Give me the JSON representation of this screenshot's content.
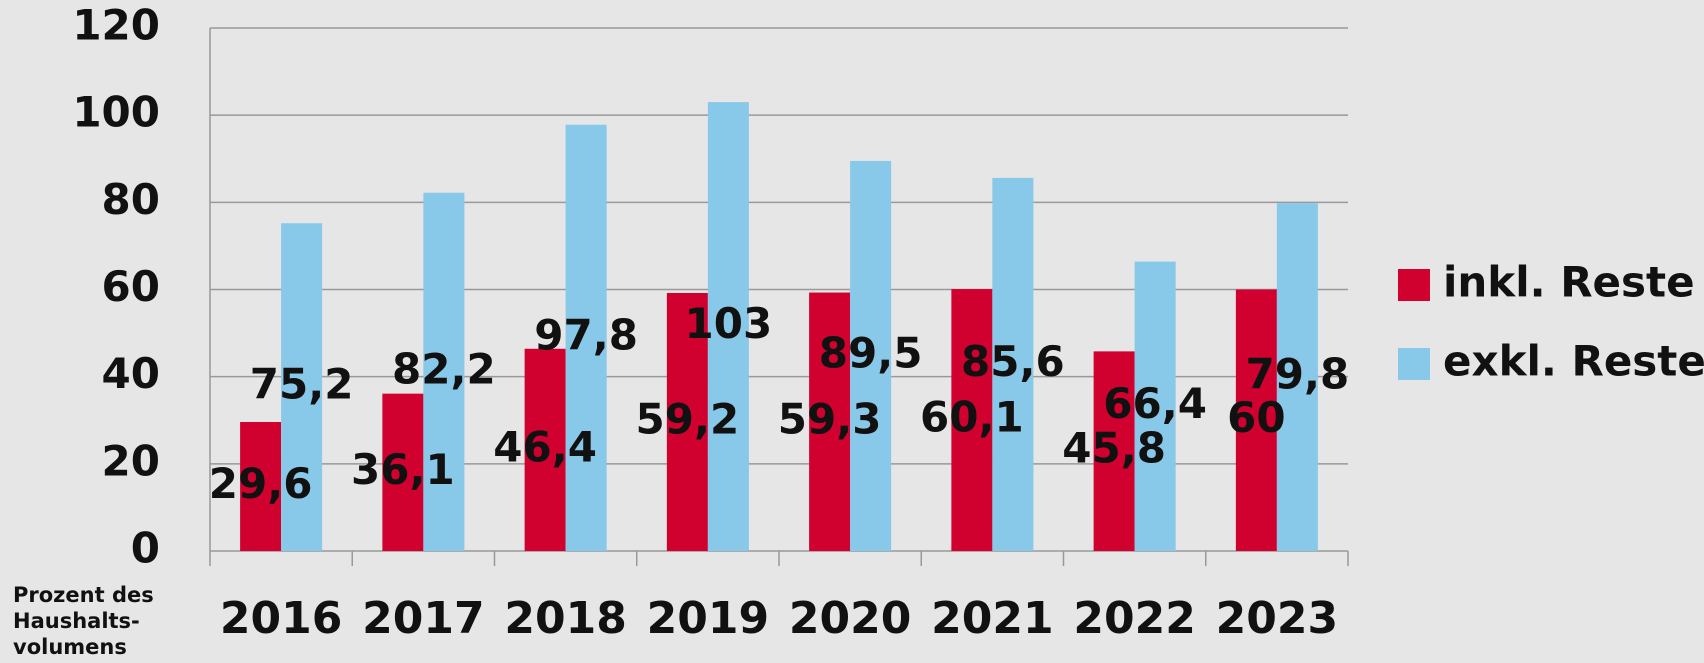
{
  "chart_data": {
    "type": "bar",
    "categories": [
      "2016",
      "2017",
      "2018",
      "2019",
      "2020",
      "2021",
      "2022",
      "2023"
    ],
    "series": [
      {
        "name": "inkl. Reste",
        "color": "#d0002f",
        "values": [
          29.6,
          36.1,
          46.4,
          59.2,
          59.3,
          60.1,
          45.8,
          60
        ],
        "value_labels": [
          "29,6",
          "36,1",
          "46,4",
          "59,2",
          "59,3",
          "60,1",
          "45,8",
          "60"
        ]
      },
      {
        "name": "exkl. Reste",
        "color": "#88c8e8",
        "values": [
          75.2,
          82.2,
          97.8,
          103,
          89.5,
          85.6,
          66.4,
          79.8
        ],
        "value_labels": [
          "75,2",
          "82,2",
          "97,8",
          "103",
          "89,5",
          "85,6",
          "66,4",
          "79,8"
        ]
      }
    ],
    "ylim": [
      0,
      120
    ],
    "yticks": [
      0,
      20,
      40,
      60,
      80,
      100,
      120
    ],
    "grid": true,
    "legend": "right",
    "y_axis_note": "Prozent des Haushalts-volumens"
  }
}
